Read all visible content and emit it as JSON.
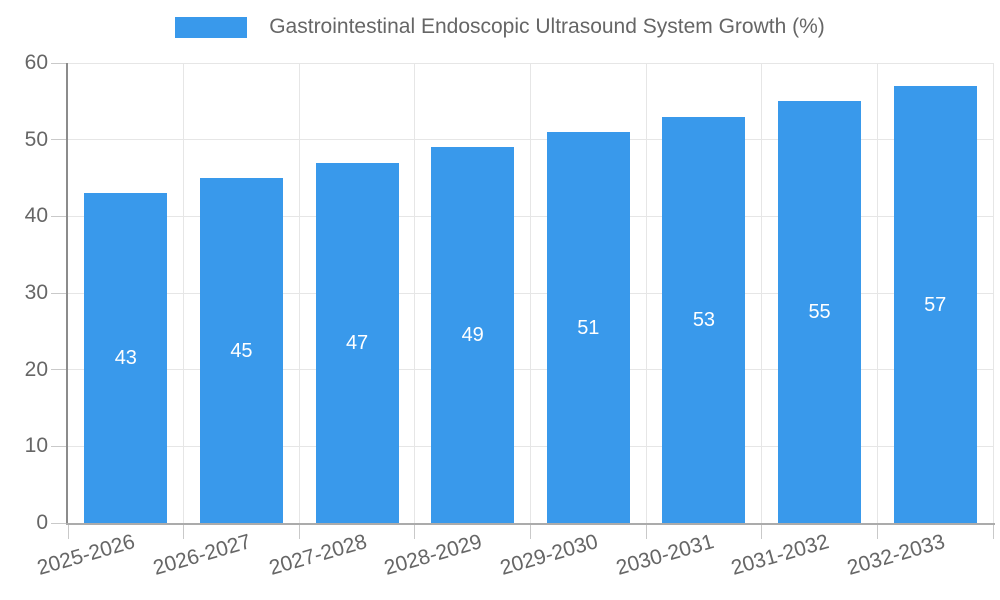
{
  "legend": {
    "label": "Gastrointestinal Endoscopic Ultrasound System Growth (%)"
  },
  "chart_data": {
    "type": "bar",
    "title": "Gastrointestinal Endoscopic Ultrasound System Growth (%)",
    "categories": [
      "2025-2026",
      "2026-2027",
      "2027-2028",
      "2028-2029",
      "2029-2030",
      "2030-2031",
      "2031-2032",
      "2032-2033"
    ],
    "series": [
      {
        "name": "Gastrointestinal Endoscopic Ultrasound System Growth (%)",
        "values": [
          43,
          45,
          47,
          49,
          51,
          53,
          55,
          57
        ]
      }
    ],
    "xlabel": "",
    "ylabel": "",
    "ylim": [
      0,
      60
    ],
    "yticks": [
      0,
      10,
      20,
      30,
      40,
      50,
      60
    ],
    "grid": true,
    "legend_position": "top-center",
    "value_labels_position": "inside-center",
    "x_label_rotation_deg": -16
  },
  "colors": {
    "bar": "#3999EB",
    "grid": "#E6E6E6",
    "y_axis_line": "#8C8C8C",
    "x_axis_line": "#ABABAB",
    "tick_mark": "#C9C9C9",
    "text": "#666666",
    "value_label": "#FFFFFF",
    "background": "#FFFFFF"
  }
}
